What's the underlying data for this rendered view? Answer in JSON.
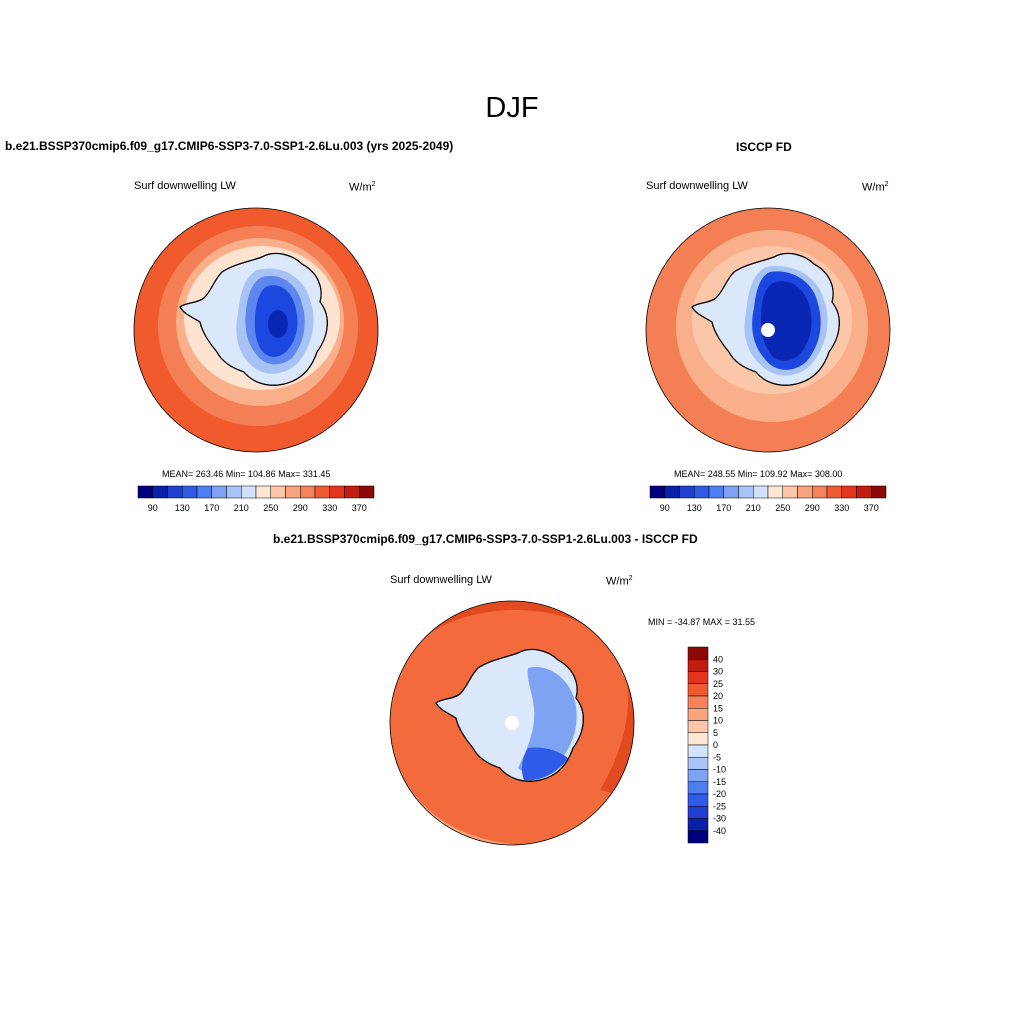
{
  "suptitle": "DJF",
  "panels": [
    {
      "title": "b.e21.BSSP370cmip6.f09_g17.CMIP6-SSP3-7.0-SSP1-2.6Lu.003 (yrs 2025-2049)",
      "subtitle": "Surf downwelling LW",
      "units": "W/m",
      "units_sup": "2",
      "stats": "MEAN= 263.46  Min= 104.86  Max= 331.45"
    },
    {
      "title": "ISCCP FD",
      "subtitle": "Surf downwelling LW",
      "units": "W/m",
      "units_sup": "2",
      "stats": "MEAN= 248.55  Min= 109.92  Max= 308.00"
    },
    {
      "title": "b.e21.BSSP370cmip6.f09_g17.CMIP6-SSP3-7.0-SSP1-2.6Lu.003 - ISCCP FD",
      "subtitle": "Surf downwelling LW",
      "units": "W/m",
      "units_sup": "2",
      "stats": "MIN = -34.87 MAX =  31.55"
    }
  ],
  "colorbar_abs": {
    "colors": [
      "#00007f",
      "#0a1fa8",
      "#1f3fd1",
      "#2f5be8",
      "#4e7ef0",
      "#7ea3f3",
      "#a9c4f6",
      "#d2e2f8",
      "#fde6d2",
      "#fcc7a8",
      "#f9a57f",
      "#f5825a",
      "#ef5a33",
      "#e3351d",
      "#c21b10",
      "#8c0a05"
    ],
    "ticks": [
      "90",
      "130",
      "170",
      "210",
      "250",
      "290",
      "330",
      "370"
    ]
  },
  "colorbar_diff": {
    "colors": [
      "#8c0a05",
      "#c21b10",
      "#e3351d",
      "#ef5a33",
      "#f5825a",
      "#f9a57f",
      "#fcc7a8",
      "#fde6d2",
      "#d2e2f8",
      "#a9c4f6",
      "#7ea3f3",
      "#4e7ef0",
      "#2f5be8",
      "#1f3fd1",
      "#0a1fa8",
      "#00007f"
    ],
    "ticks": [
      "40",
      "30",
      "25",
      "20",
      "15",
      "10",
      "5",
      "0",
      "-5",
      "-10",
      "-15",
      "-20",
      "-25",
      "-30",
      "-40"
    ]
  },
  "map_colors": {
    "ring_outer": "#f05a2c",
    "ring_mid": "#f47f55",
    "ring_light": "#f9b08a",
    "ring_pale": "#fde3d0",
    "ice_pale": "#dbe7fa",
    "ice_light": "#a7c3f4",
    "ice_mid": "#5d87ee",
    "ice_deep": "#1c48e0",
    "ice_core": "#0a26b5",
    "diff_outer": "#f36b3c",
    "diff_dark": "#e34a1f",
    "diff_light": "#f8a27b"
  }
}
